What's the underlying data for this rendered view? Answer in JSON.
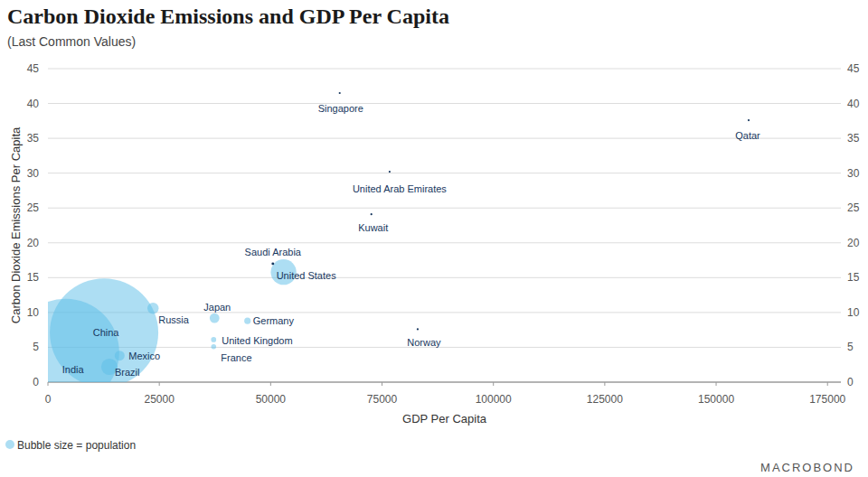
{
  "chart_data": {
    "type": "bubble",
    "title": "Carbon Dioxide Emissions and GDP Per Capita",
    "subtitle": "(Last Common Values)",
    "x_label": "GDP Per Capita",
    "y_label": "Carbon Dioxide Emissions Per Capita",
    "size_legend": "Bubble size = population",
    "source": "MACROBOND",
    "point_labels": [
      "China",
      "India",
      "United States",
      "Russia",
      "Brazil",
      "Mexico",
      "Japan",
      "Germany",
      "United Kingdom",
      "France",
      "Saudi Arabia",
      "Singapore",
      "Qatar",
      "United Arab Emirates",
      "Kuwait",
      "Norway"
    ],
    "x": [
      12600,
      4000,
      52900,
      23600,
      13800,
      16100,
      37400,
      44800,
      37200,
      37200,
      50500,
      65500,
      157300,
      76700,
      72600,
      83000
    ],
    "values": [
      7.1,
      4.3,
      15.8,
      10.6,
      2.2,
      3.8,
      9.2,
      8.8,
      6.1,
      5.1,
      17.0,
      41.5,
      37.6,
      30.2,
      24.1,
      7.6
    ],
    "size": [
      1400,
      1380,
      330,
      145,
      212,
      128,
      126,
      83,
      67,
      65,
      34,
      5.7,
      2.8,
      9.9,
      4.3,
      5.4
    ],
    "color": "#5bbde8",
    "xlim": [
      0,
      178000
    ],
    "xticks": [
      0,
      25000,
      50000,
      75000,
      100000,
      125000,
      150000,
      175000
    ],
    "ylim": [
      0,
      45
    ],
    "yticks": [
      0,
      5,
      10,
      15,
      20,
      25,
      30,
      35,
      40,
      45
    ],
    "grid": true
  }
}
